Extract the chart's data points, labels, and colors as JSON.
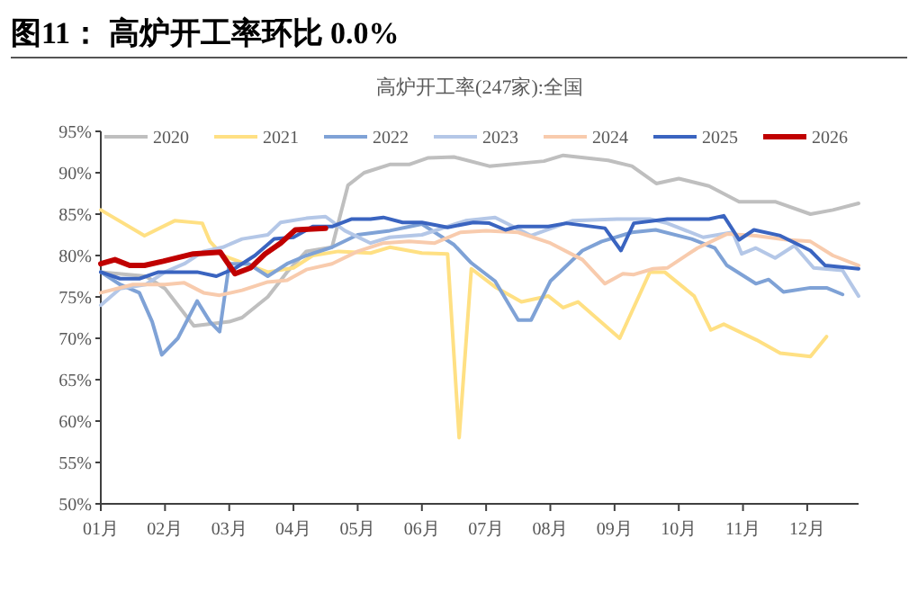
{
  "chart_data": {
    "type": "line",
    "title": "图11：  高炉开工率环比 0.0%",
    "subtitle": "高炉开工率(247家):全国",
    "xlim": [
      1,
      12.8
    ],
    "xticks": [
      {
        "value": 1,
        "label": "01月"
      },
      {
        "value": 2,
        "label": "02月"
      },
      {
        "value": 3,
        "label": "03月"
      },
      {
        "value": 4,
        "label": "04月"
      },
      {
        "value": 5,
        "label": "05月"
      },
      {
        "value": 6,
        "label": "06月"
      },
      {
        "value": 7,
        "label": "07月"
      },
      {
        "value": 8,
        "label": "08月"
      },
      {
        "value": 9,
        "label": "09月"
      },
      {
        "value": 10,
        "label": "10月"
      },
      {
        "value": 11,
        "label": "11月"
      },
      {
        "value": 12,
        "label": "12月"
      }
    ],
    "ylim": [
      50,
      95
    ],
    "yticks": [
      {
        "value": 50,
        "label": "50%"
      },
      {
        "value": 55,
        "label": "55%"
      },
      {
        "value": 60,
        "label": "60%"
      },
      {
        "value": 65,
        "label": "65%"
      },
      {
        "value": 70,
        "label": "70%"
      },
      {
        "value": 75,
        "label": "75%"
      },
      {
        "value": 80,
        "label": "80%"
      },
      {
        "value": 85,
        "label": "85%"
      },
      {
        "value": 90,
        "label": "90%"
      },
      {
        "value": 95,
        "label": "95%"
      }
    ],
    "grid": false,
    "legend": "top",
    "marker": "none",
    "line_style": "solid",
    "series": [
      {
        "name": "2020",
        "color": "#bfbfbf",
        "x": [
          1,
          1.7,
          2.0,
          2.45,
          3.0,
          3.2,
          3.6,
          3.9,
          4.2,
          4.6,
          4.85,
          5.1,
          5.5,
          5.8,
          6.1,
          6.5,
          7.05,
          7.9,
          8.2,
          8.9,
          9.27,
          9.65,
          10.0,
          10.47,
          10.94,
          11.5,
          12.05,
          12.4,
          12.8
        ],
        "values": [
          78,
          77.5,
          76,
          71.5,
          72,
          72.5,
          75,
          78,
          80.5,
          81,
          88.5,
          90,
          91,
          91,
          91.8,
          91.9,
          90.8,
          91.4,
          92.1,
          91.5,
          90.8,
          88.7,
          89.3,
          88.4,
          86.5,
          86.5,
          85,
          85.5,
          86.3
        ]
      },
      {
        "name": "2021",
        "color": "#ffe083",
        "x": [
          1,
          1.68,
          2.15,
          2.58,
          2.7,
          2.9,
          3.6,
          4.0,
          4.3,
          4.7,
          5.2,
          5.5,
          6.0,
          6.4,
          6.58,
          6.77,
          7.14,
          7.55,
          7.97,
          8.2,
          8.43,
          9.08,
          9.55,
          9.78,
          10.24,
          10.5,
          10.7,
          11.21,
          11.58,
          12.05,
          12.3
        ],
        "values": [
          85.5,
          82.4,
          84.2,
          83.9,
          81.7,
          80,
          78,
          78.5,
          80,
          80.5,
          80.3,
          81,
          80.3,
          80.2,
          58,
          78.4,
          76.2,
          74.4,
          75.1,
          73.7,
          74.4,
          70,
          78,
          78,
          75.1,
          71,
          71.7,
          69.8,
          68.2,
          67.8,
          70.2
        ]
      },
      {
        "name": "2022",
        "color": "#7fa2d6",
        "x": [
          1,
          1.3,
          1.6,
          1.8,
          1.95,
          2.2,
          2.5,
          2.7,
          2.85,
          3.0,
          3.3,
          3.6,
          3.9,
          4.2,
          4.6,
          5.0,
          5.5,
          6.0,
          6.5,
          6.77,
          7.14,
          7.5,
          7.7,
          8.0,
          8.5,
          8.8,
          9.27,
          9.64,
          10.2,
          10.56,
          10.75,
          11.2,
          11.4,
          11.63,
          12.05,
          12.3,
          12.55
        ],
        "values": [
          78,
          76.5,
          75.5,
          72,
          68,
          70,
          74.5,
          72,
          70.8,
          79,
          79,
          77.5,
          79,
          80,
          81,
          82.5,
          83,
          83.8,
          81.3,
          79.1,
          76.9,
          72.2,
          72.2,
          76.9,
          80.6,
          81.7,
          82.8,
          83.1,
          82,
          80.9,
          78.8,
          76.6,
          77.1,
          75.6,
          76.1,
          76.1,
          75.3
        ]
      },
      {
        "name": "2023",
        "color": "#b4c7e7",
        "x": [
          1,
          1.3,
          1.7,
          2.0,
          2.3,
          2.6,
          2.9,
          3.2,
          3.6,
          3.8,
          4.2,
          4.5,
          4.8,
          5.2,
          5.5,
          6.0,
          6.68,
          7.14,
          7.7,
          8.34,
          9.04,
          9.55,
          9.82,
          10.38,
          10.84,
          10.98,
          11.2,
          11.5,
          11.8,
          12.1,
          12.55,
          12.8
        ],
        "values": [
          74,
          76,
          76.5,
          78,
          79,
          80.5,
          81,
          82,
          82.5,
          84,
          84.5,
          84.7,
          83,
          81.5,
          82.2,
          82.5,
          84.2,
          84.6,
          82.4,
          84.2,
          84.4,
          84.4,
          83.9,
          82.2,
          82.8,
          80.2,
          80.9,
          79.7,
          81.2,
          78.5,
          78.2,
          75.1
        ]
      },
      {
        "name": "2024",
        "color": "#f8cbad",
        "x": [
          1,
          1.5,
          2.0,
          2.3,
          2.6,
          2.85,
          3.2,
          3.6,
          3.9,
          4.2,
          4.6,
          5.0,
          5.4,
          5.8,
          6.2,
          6.6,
          7.0,
          7.5,
          8.0,
          8.5,
          8.85,
          9.13,
          9.3,
          9.6,
          9.82,
          10.29,
          10.75,
          11.2,
          11.68,
          12.05,
          12.4,
          12.8
        ],
        "values": [
          75.5,
          76.5,
          76.5,
          76.7,
          75.5,
          75.2,
          75.8,
          76.8,
          77,
          78.3,
          79,
          80.5,
          81.5,
          81.7,
          81.5,
          82.8,
          83,
          82.8,
          81.5,
          79.5,
          76.6,
          77.8,
          77.7,
          78.4,
          78.5,
          80.9,
          82.6,
          82.4,
          81.9,
          81.7,
          80,
          78.8
        ]
      },
      {
        "name": "2025",
        "color": "#3a64c0",
        "x": [
          1,
          1.3,
          1.6,
          1.9,
          2.2,
          2.5,
          2.8,
          3.1,
          3.4,
          3.7,
          4.0,
          4.3,
          4.6,
          4.9,
          5.2,
          5.4,
          5.7,
          6.0,
          6.4,
          6.8,
          7.05,
          7.3,
          7.5,
          7.97,
          8.25,
          8.85,
          9.1,
          9.3,
          9.82,
          10.47,
          10.7,
          10.94,
          11.17,
          11.58,
          12.05,
          12.28,
          12.8
        ],
        "values": [
          78,
          77.2,
          77.2,
          78,
          78,
          78,
          77.5,
          78.5,
          80,
          82,
          82.2,
          83.5,
          83.5,
          84.4,
          84.4,
          84.6,
          84,
          84,
          83.4,
          84,
          83.9,
          83.1,
          83.5,
          83.5,
          83.9,
          83.3,
          80.6,
          83.9,
          84.4,
          84.4,
          84.8,
          81.9,
          83.1,
          82.4,
          80.6,
          78.8,
          78.4
        ]
      },
      {
        "name": "2026",
        "color": "#c00000",
        "x": [
          1,
          1.22,
          1.45,
          1.68,
          1.97,
          2.44,
          2.86,
          3.09,
          3.33,
          3.56,
          3.8,
          4.03,
          4.5
        ],
        "values": [
          79,
          79.5,
          78.8,
          78.8,
          79.3,
          80.2,
          80.4,
          77.8,
          78.5,
          80.2,
          81.5,
          83.1,
          83.3
        ]
      }
    ]
  }
}
